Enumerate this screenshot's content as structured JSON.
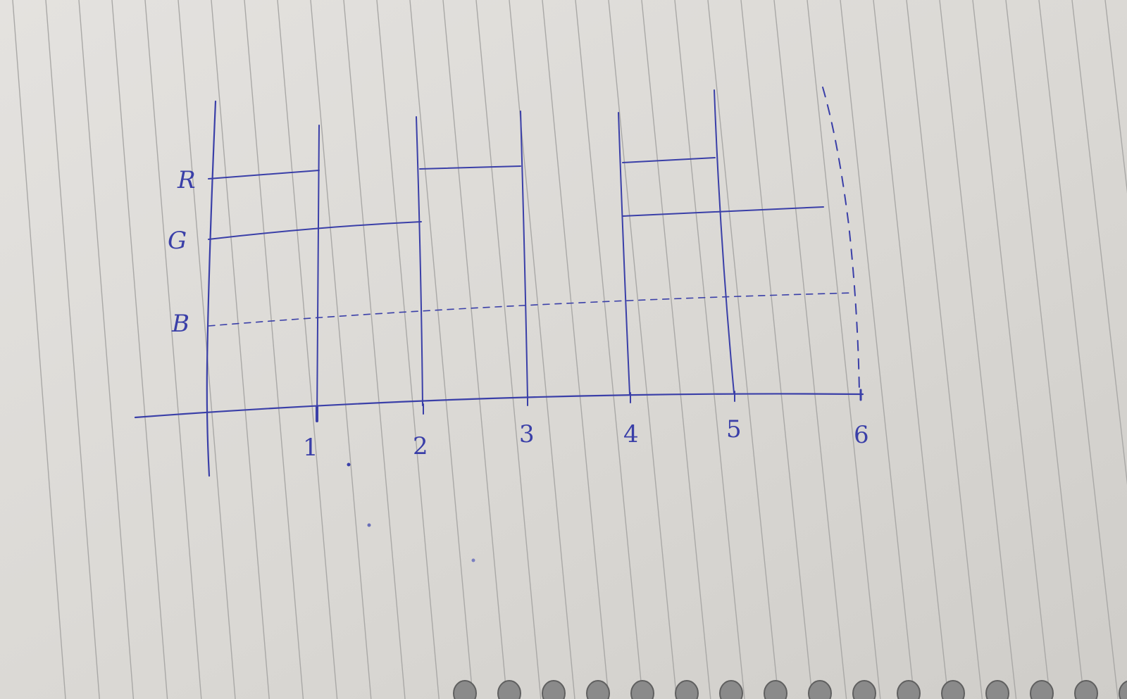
{
  "diagram": {
    "row_labels": [
      "R",
      "G",
      "B"
    ],
    "tick_labels": [
      "1",
      "2",
      "3",
      "4",
      "5",
      "6"
    ],
    "colors": {
      "ink": "#3a3fa8",
      "paper": "#dddbd7",
      "ruled_line": "#a9a8a6",
      "spiral": "#8a8a8a"
    }
  }
}
